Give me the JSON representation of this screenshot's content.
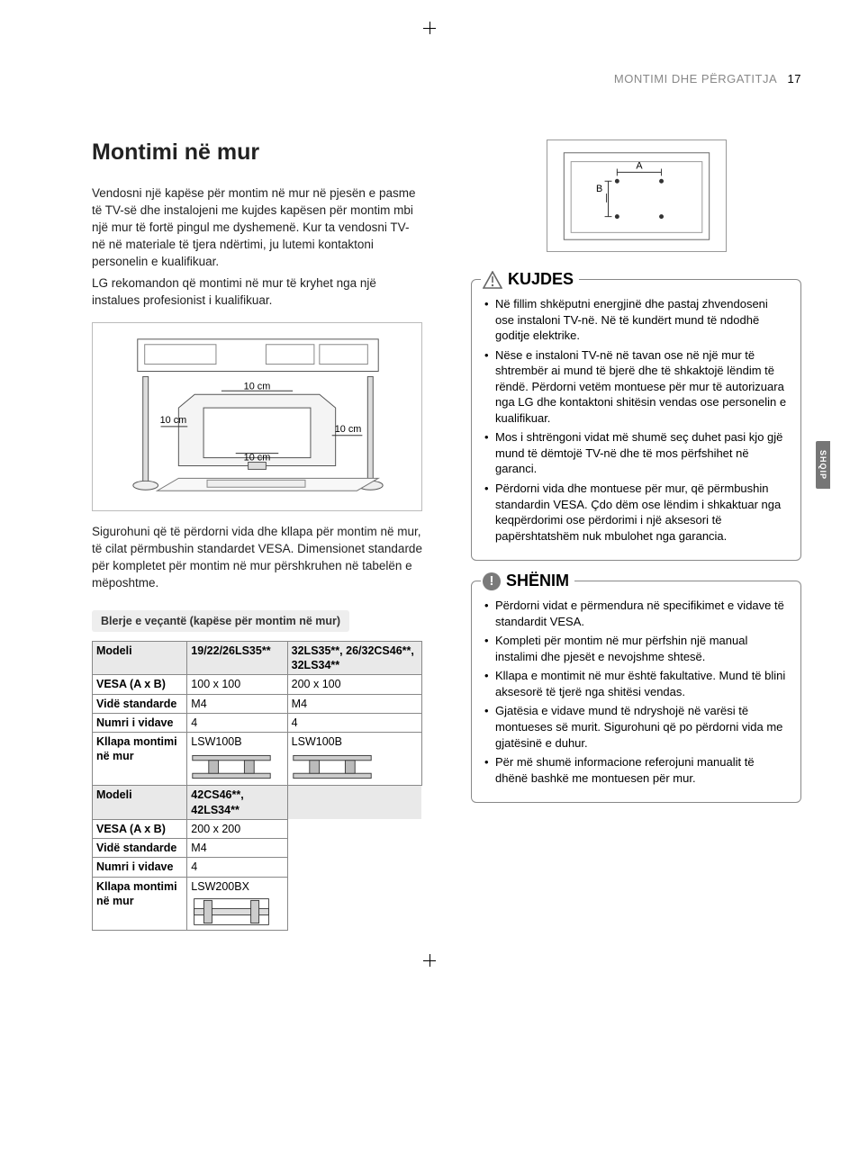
{
  "header": {
    "section": "MONTIMI DHE PËRGATITJA",
    "page_number": "17"
  },
  "side_tab": "SHQIP",
  "title": "Montimi në mur",
  "intro_p1": "Vendosni një kapëse për montim në mur në pjesën e pasme të TV-së dhe instalojeni me kujdes kapësen për montim mbi një mur të fortë pingul me dyshemenë. Kur ta vendosni TV-në në materiale të tjera ndërtimi, ju lutemi kontaktoni personelin e kualifikuar.",
  "intro_p2": "LG rekomandon që montimi në mur të kryhet nga një instalues profesionist i kualifikuar.",
  "spacing_label": "10 cm",
  "mid_p": "Sigurohuni që të përdorni vida dhe kllapa për montim në mur, të cilat përmbushin standardet VESA. Dimensionet standarde për kompletet për montim në mur përshkruhen në tabelën e mëposhtme.",
  "pill": "Blerje e veçantë (kapëse për montim në mur)",
  "table": {
    "labels": {
      "model": "Modeli",
      "vesa": "VESA (A x B)",
      "screw": "Vidë standarde",
      "count": "Numri i vidave",
      "bracket": "Kllapa montimi në mur"
    },
    "block1": {
      "model_a": "19/22/26LS35**",
      "model_b": "32LS35**, 26/32CS46**, 32LS34**",
      "vesa_a": "100 x 100",
      "vesa_b": "200 x 100",
      "screw_a": "M4",
      "screw_b": "M4",
      "count_a": "4",
      "count_b": "4",
      "bracket_a": "LSW100B",
      "bracket_b": "LSW100B"
    },
    "block2": {
      "model_a": "42CS46**, 42LS34**",
      "vesa_a": "200 x 200",
      "screw_a": "M4",
      "count_a": "4",
      "bracket_a": "LSW200BX"
    }
  },
  "vesa_diagram": {
    "A": "A",
    "B": "B"
  },
  "caution": {
    "title": "KUJDES",
    "items": [
      "Në fillim shkëputni energjinë dhe pastaj zhvendoseni ose instaloni TV-në. Në të kundërt mund të ndodhë goditje elektrike.",
      "Nëse e instaloni TV-në në tavan ose në një mur të shtrembër ai mund të bjerë dhe të shkaktojë lëndim të rëndë. Përdorni vetëm montuese për mur të autorizuara nga LG dhe kontaktoni shitësin vendas ose personelin e kualifikuar.",
      "Mos i shtrëngoni vidat më shumë seç duhet pasi kjo gjë mund të dëmtojë TV-në dhe të mos përfshihet në garanci.",
      "Përdorni vida dhe montuese për mur, që përmbushin standardin VESA. Çdo dëm ose lëndim i shkaktuar nga keqpërdorimi ose përdorimi i një aksesori të papërshtatshëm nuk mbulohet nga garancia."
    ]
  },
  "note": {
    "title": "SHËNIM",
    "items": [
      "Përdorni vidat e përmendura në specifikimet e vidave të standardit VESA.",
      "Kompleti për montim në mur përfshin një manual instalimi dhe pjesët e nevojshme shtesë.",
      "Kllapa e montimit në mur është fakultative. Mund të blini aksesorë të tjerë nga shitësi vendas.",
      "Gjatësia e vidave mund të ndryshojë në varësi të montueses së murit. Sigurohuni që po përdorni vida me gjatësinë e duhur.",
      "Për më shumë informacione referojuni manualit të dhënë bashkë me montuesen për mur."
    ]
  }
}
